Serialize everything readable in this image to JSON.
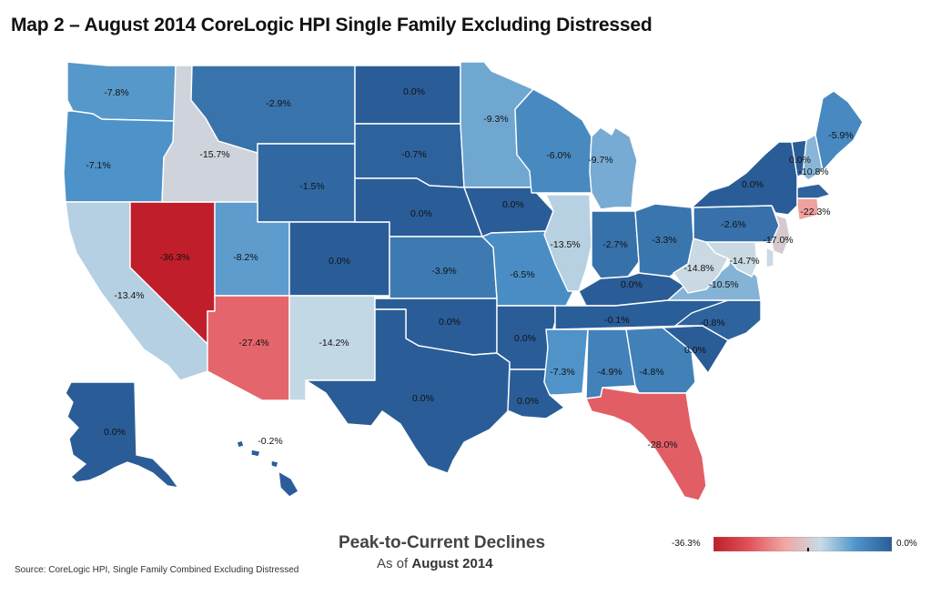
{
  "title": "Map 2 – August 2014 CoreLogic HPI Single Family Excluding Distressed",
  "legend": {
    "title": "Peak-to-Current Declines",
    "subtitle_prefix": "As of",
    "subtitle_date": "August 2014",
    "min_label": "-36.3%",
    "max_label": "0.0%",
    "min_value": -36.3,
    "max_value": 0.0,
    "colors": [
      "#c01e2a",
      "#e0525a",
      "#f0a7a4",
      "#c8dbe6",
      "#4e93c9",
      "#2a5d98"
    ]
  },
  "source": "Source: CoreLogic HPI, Single Family Combined Excluding Distressed",
  "states": [
    {
      "id": "WA",
      "value": -7.8,
      "label": "-7.8%"
    },
    {
      "id": "OR",
      "value": -7.1,
      "label": "-7.1%"
    },
    {
      "id": "CA",
      "value": -13.4,
      "label": "-13.4%"
    },
    {
      "id": "NV",
      "value": -36.3,
      "label": "-36.3%"
    },
    {
      "id": "ID",
      "value": -15.7,
      "label": "-15.7%"
    },
    {
      "id": "MT",
      "value": -2.9,
      "label": "-2.9%"
    },
    {
      "id": "WY",
      "value": -1.5,
      "label": "-1.5%"
    },
    {
      "id": "UT",
      "value": -8.2,
      "label": "-8.2%"
    },
    {
      "id": "AZ",
      "value": -27.4,
      "label": "-27.4%"
    },
    {
      "id": "CO",
      "value": 0.0,
      "label": "0.0%"
    },
    {
      "id": "NM",
      "value": -14.2,
      "label": "-14.2%"
    },
    {
      "id": "ND",
      "value": 0.0,
      "label": "0.0%"
    },
    {
      "id": "SD",
      "value": -0.7,
      "label": "-0.7%"
    },
    {
      "id": "NE",
      "value": 0.0,
      "label": "0.0%"
    },
    {
      "id": "KS",
      "value": -3.9,
      "label": "-3.9%"
    },
    {
      "id": "OK",
      "value": 0.0,
      "label": "0.0%"
    },
    {
      "id": "TX",
      "value": 0.0,
      "label": "0.0%"
    },
    {
      "id": "MN",
      "value": -9.3,
      "label": "-9.3%"
    },
    {
      "id": "IA",
      "value": 0.0,
      "label": "0.0%"
    },
    {
      "id": "MO",
      "value": -6.5,
      "label": "-6.5%"
    },
    {
      "id": "AR",
      "value": 0.0,
      "label": "0.0%"
    },
    {
      "id": "LA",
      "value": 0.0,
      "label": "0.0%"
    },
    {
      "id": "WI",
      "value": -6.0,
      "label": "-6.0%"
    },
    {
      "id": "IL",
      "value": -13.5,
      "label": "-13.5%"
    },
    {
      "id": "MI",
      "value": -9.7,
      "label": "-9.7%"
    },
    {
      "id": "IN",
      "value": -2.7,
      "label": "-2.7%"
    },
    {
      "id": "OH",
      "value": -3.3,
      "label": "-3.3%"
    },
    {
      "id": "KY",
      "value": 0.0,
      "label": "0.0%"
    },
    {
      "id": "TN",
      "value": -0.1,
      "label": "-0.1%"
    },
    {
      "id": "MS",
      "value": -7.3,
      "label": "-7.3%"
    },
    {
      "id": "AL",
      "value": -4.9,
      "label": "-4.9%"
    },
    {
      "id": "GA",
      "value": -4.8,
      "label": "-4.8%"
    },
    {
      "id": "FL",
      "value": -28.0,
      "label": "-28.0%"
    },
    {
      "id": "SC",
      "value": 0.0,
      "label": "0.0%"
    },
    {
      "id": "NC",
      "value": -0.8,
      "label": "-0.8%"
    },
    {
      "id": "VA",
      "value": -10.5,
      "label": "-10.5%"
    },
    {
      "id": "WV",
      "value": -14.8,
      "label": "-14.8%"
    },
    {
      "id": "MD",
      "value": -14.7,
      "label": "-14.7%"
    },
    {
      "id": "PA",
      "value": -2.6,
      "label": "-2.6%"
    },
    {
      "id": "NJ",
      "value": -17.0,
      "label": "-17.0%"
    },
    {
      "id": "NY",
      "value": 0.0,
      "label": "0.0%"
    },
    {
      "id": "CT",
      "value": -22.3,
      "label": "-22.3%"
    },
    {
      "id": "NH",
      "value": -10.8,
      "label": "-10.8%"
    },
    {
      "id": "VT",
      "value": 0.0,
      "label": "0.0%"
    },
    {
      "id": "ME",
      "value": -5.9,
      "label": "-5.9%"
    },
    {
      "id": "MA",
      "value": -0.8,
      "label": ""
    },
    {
      "id": "DE",
      "value": -14.7,
      "label": ""
    },
    {
      "id": "AK",
      "value": 0.0,
      "label": "0.0%"
    },
    {
      "id": "HI",
      "value": -0.2,
      "label": "-0.2%"
    }
  ]
}
